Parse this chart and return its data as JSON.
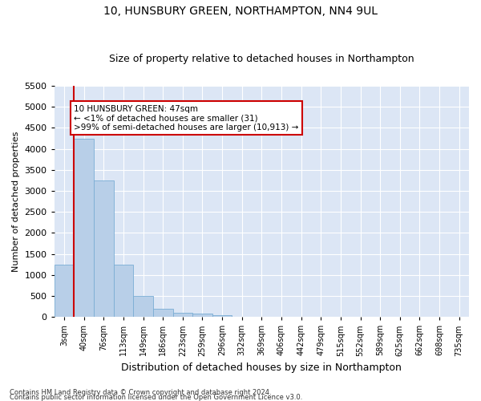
{
  "title": "10, HUNSBURY GREEN, NORTHAMPTON, NN4 9UL",
  "subtitle": "Size of property relative to detached houses in Northampton",
  "xlabel": "Distribution of detached houses by size in Northampton",
  "ylabel": "Number of detached properties",
  "annotation_line1": "10 HUNSBURY GREEN: 47sqm",
  "annotation_line2": "← <1% of detached houses are smaller (31)",
  "annotation_line3": ">99% of semi-detached houses are larger (10,913) →",
  "footer_line1": "Contains HM Land Registry data © Crown copyright and database right 2024.",
  "footer_line2": "Contains public sector information licensed under the Open Government Licence v3.0.",
  "property_size_idx": 1,
  "bar_color": "#b8cfe8",
  "bar_edge_color": "#7aadd4",
  "vline_color": "#cc0000",
  "annotation_box_color": "#cc0000",
  "background_color": "#dce6f5",
  "grid_color": "#ffffff",
  "categories": [
    "3sqm",
    "40sqm",
    "76sqm",
    "113sqm",
    "149sqm",
    "186sqm",
    "223sqm",
    "259sqm",
    "296sqm",
    "332sqm",
    "369sqm",
    "406sqm",
    "442sqm",
    "479sqm",
    "515sqm",
    "552sqm",
    "589sqm",
    "625sqm",
    "662sqm",
    "698sqm",
    "735sqm"
  ],
  "values": [
    1250,
    4250,
    3250,
    1250,
    500,
    200,
    100,
    70,
    50,
    0,
    0,
    0,
    0,
    0,
    0,
    0,
    0,
    0,
    0,
    0,
    0
  ],
  "ylim": [
    0,
    5500
  ],
  "yticks": [
    0,
    500,
    1000,
    1500,
    2000,
    2500,
    3000,
    3500,
    4000,
    4500,
    5000,
    5500
  ],
  "title_fontsize": 10,
  "subtitle_fontsize": 9,
  "xlabel_fontsize": 9,
  "ylabel_fontsize": 8,
  "ytick_fontsize": 8,
  "xtick_fontsize": 7,
  "footer_fontsize": 6
}
